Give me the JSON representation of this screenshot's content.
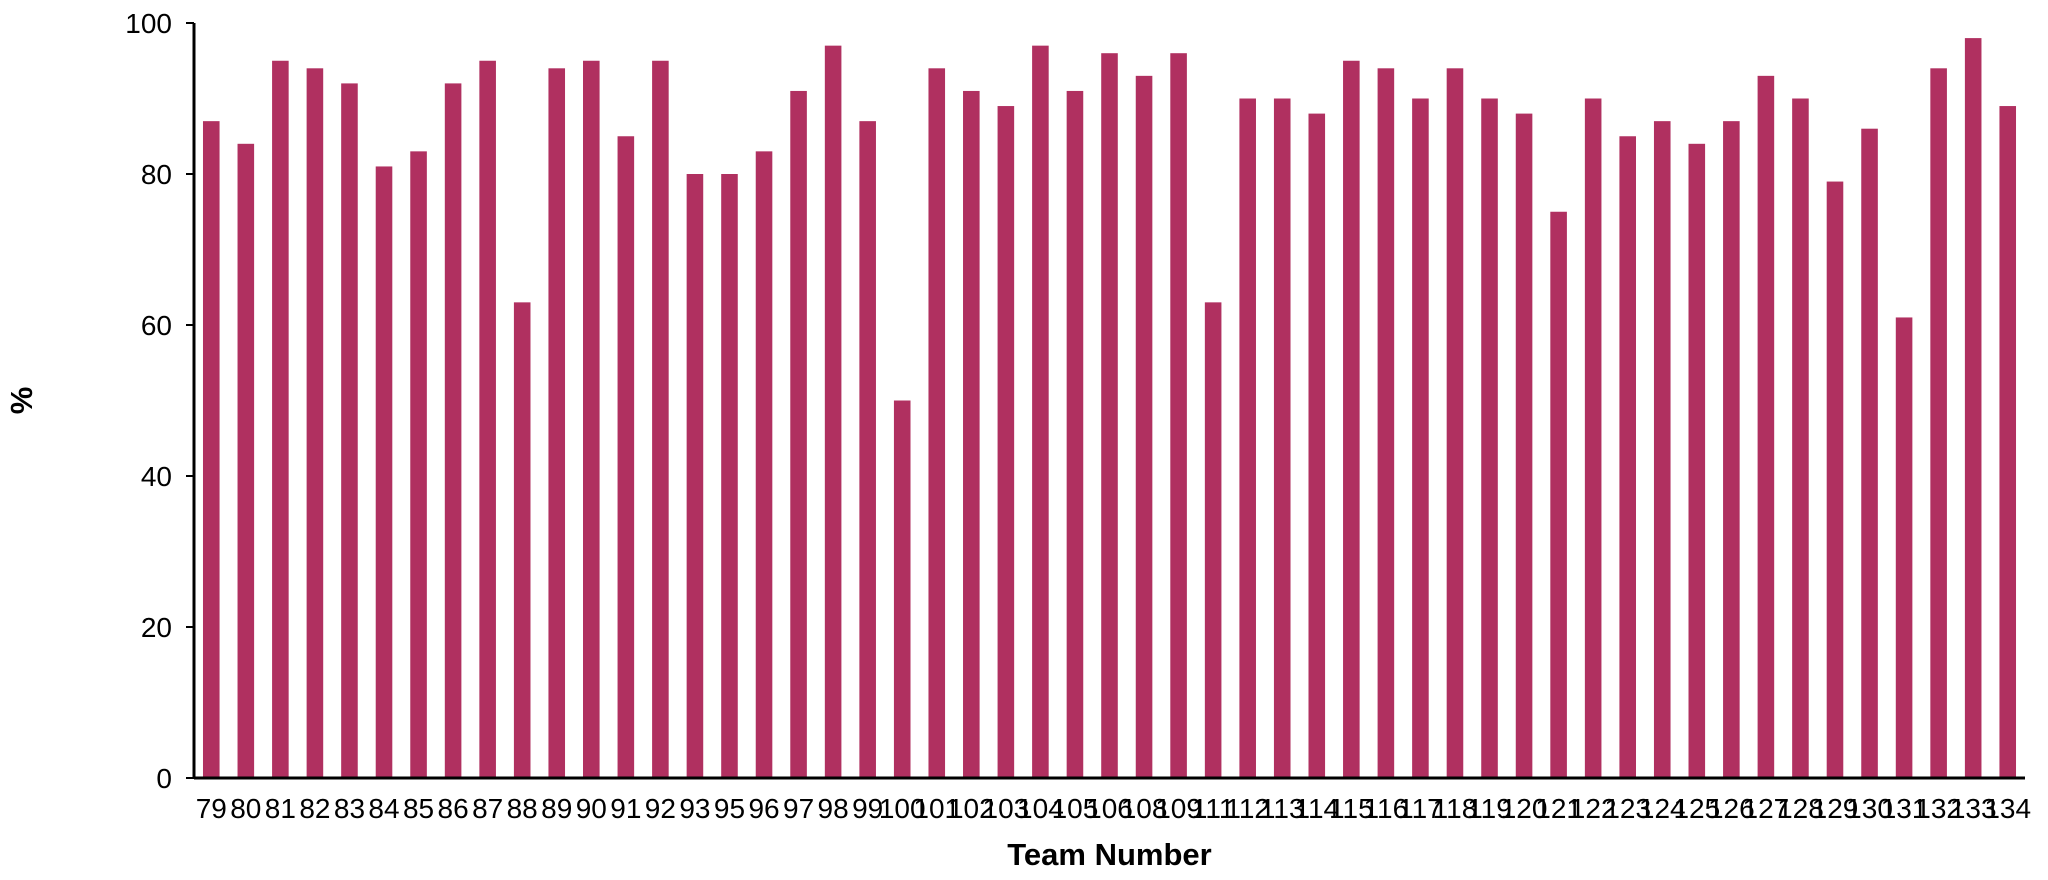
{
  "chart_data": {
    "type": "bar",
    "title": "",
    "xlabel": "Team Number",
    "ylabel": "%",
    "ylim": [
      0,
      100
    ],
    "yticks": [
      0,
      20,
      40,
      60,
      80,
      100
    ],
    "grid": false,
    "legend": "none",
    "bar_color": "#b03060",
    "categories": [
      "79",
      "80",
      "81",
      "82",
      "83",
      "84",
      "85",
      "86",
      "87",
      "88",
      "89",
      "90",
      "91",
      "92",
      "93",
      "95",
      "96",
      "97",
      "98",
      "99",
      "100",
      "101",
      "102",
      "103",
      "104",
      "105",
      "106",
      "108",
      "109",
      "111",
      "112",
      "113",
      "114",
      "115",
      "116",
      "117",
      "118",
      "119",
      "120",
      "121",
      "122",
      "123",
      "124",
      "125",
      "126",
      "127",
      "128",
      "129",
      "130",
      "131",
      "132",
      "133",
      "134"
    ],
    "values": [
      87,
      84,
      95,
      94,
      92,
      81,
      83,
      92,
      95,
      63,
      94,
      95,
      85,
      95,
      80,
      80,
      83,
      91,
      97,
      87,
      50,
      94,
      91,
      89,
      97,
      91,
      96,
      93,
      96,
      63,
      90,
      90,
      88,
      95,
      94,
      90,
      94,
      90,
      88,
      75,
      90,
      85,
      87,
      84,
      87,
      93,
      90,
      79,
      86,
      61,
      94,
      98,
      89
    ]
  }
}
